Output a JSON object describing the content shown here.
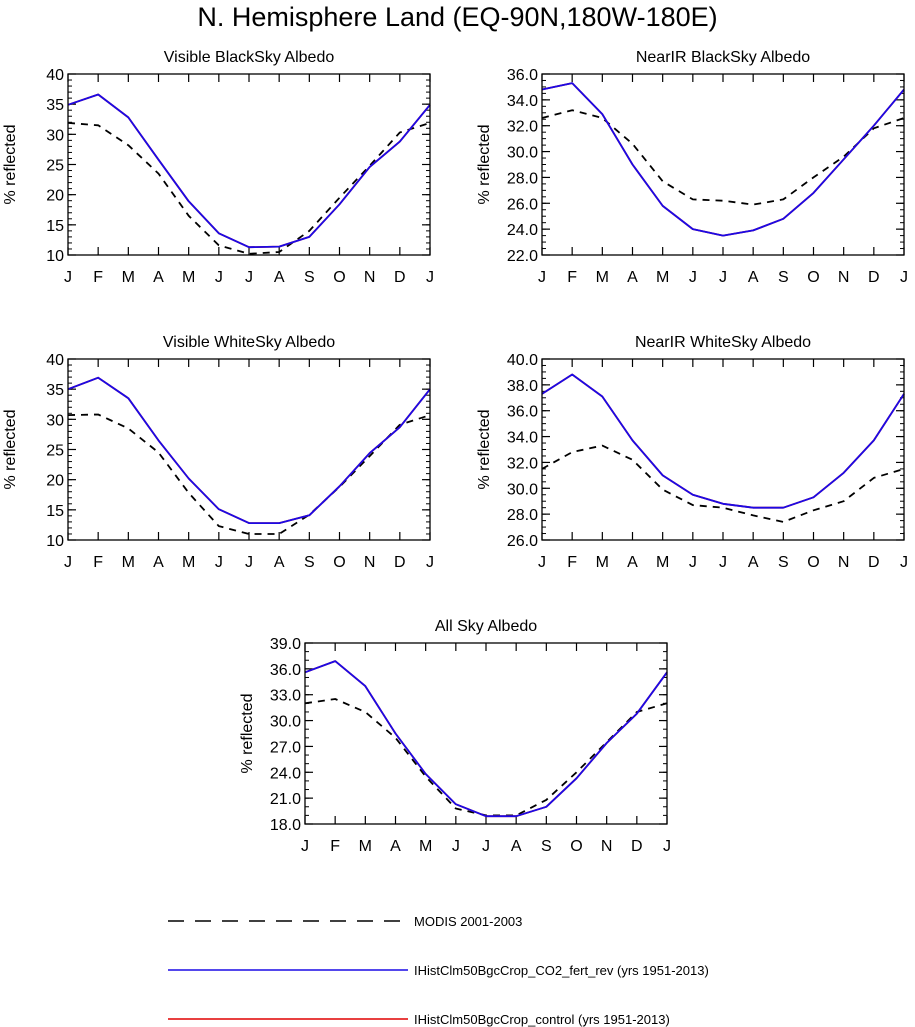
{
  "title": "N. Hemisphere Land (EQ-90N,180W-180E)",
  "months": [
    "J",
    "F",
    "M",
    "A",
    "M",
    "J",
    "J",
    "A",
    "S",
    "O",
    "N",
    "D",
    "J"
  ],
  "colors": {
    "modis": "#000000",
    "co2_fert_rev": "#1a0ae6",
    "control": "#e00000"
  },
  "legend": [
    {
      "label": "MODIS 2001-2003",
      "style": "dashed",
      "color": "#000000"
    },
    {
      "label": "IHistClm50BgcCrop_CO2_fert_rev (yrs 1951-2013)",
      "style": "solid",
      "color": "#1a0ae6"
    },
    {
      "label": "IHistClm50BgcCrop_control (yrs 1951-2013)",
      "style": "solid",
      "color": "#e00000"
    }
  ],
  "chart_data": [
    {
      "type": "line",
      "title": "Visible BlackSky Albedo",
      "ylabel": "% reflected",
      "ylim": [
        10,
        40
      ],
      "yticks": [
        "10",
        "15",
        "20",
        "25",
        "30",
        "35",
        "40"
      ],
      "yminor": 1,
      "series": [
        {
          "name": "MODIS 2001-2003",
          "values": [
            31.9,
            31.5,
            28.2,
            23.5,
            16.5,
            11.6,
            10.2,
            10.5,
            14.0,
            19.5,
            24.8,
            30.3,
            31.9
          ]
        },
        {
          "name": "IHistClm50BgcCrop_CO2_fert_rev (yrs 1951-2013)",
          "values": [
            34.9,
            36.6,
            32.8,
            25.8,
            18.9,
            13.6,
            11.3,
            11.4,
            13.0,
            18.4,
            24.6,
            28.8,
            34.9
          ]
        },
        {
          "name": "IHistClm50BgcCrop_control (yrs 1951-2013)",
          "values": [
            34.9,
            36.6,
            32.8,
            25.8,
            18.9,
            13.6,
            11.3,
            11.4,
            13.0,
            18.4,
            24.6,
            28.8,
            34.9
          ]
        }
      ]
    },
    {
      "type": "line",
      "title": "NearIR BlackSky Albedo",
      "ylabel": "% reflected",
      "ylim": [
        22,
        36
      ],
      "yticks": [
        "22.0",
        "24.0",
        "26.0",
        "28.0",
        "30.0",
        "32.0",
        "34.0",
        "36.0"
      ],
      "yminor": 0.5,
      "series": [
        {
          "name": "MODIS 2001-2003",
          "values": [
            32.6,
            33.2,
            32.6,
            30.6,
            27.7,
            26.3,
            26.2,
            25.9,
            26.3,
            28.0,
            29.6,
            31.8,
            32.6
          ]
        },
        {
          "name": "IHistClm50BgcCrop_CO2_fert_rev (yrs 1951-2013)",
          "values": [
            34.8,
            35.3,
            32.9,
            29.0,
            25.8,
            24.0,
            23.5,
            23.9,
            24.8,
            26.8,
            29.4,
            32.0,
            34.8
          ]
        },
        {
          "name": "IHistClm50BgcCrop_control (yrs 1951-2013)",
          "values": [
            34.8,
            35.3,
            32.9,
            29.0,
            25.8,
            24.0,
            23.5,
            23.9,
            24.8,
            26.8,
            29.4,
            32.0,
            34.8
          ]
        }
      ]
    },
    {
      "type": "line",
      "title": "Visible WhiteSky Albedo",
      "ylabel": "% reflected",
      "ylim": [
        10,
        40
      ],
      "yticks": [
        "10",
        "15",
        "20",
        "25",
        "30",
        "35",
        "40"
      ],
      "yminor": 1,
      "series": [
        {
          "name": "MODIS 2001-2003",
          "values": [
            30.7,
            30.8,
            28.5,
            24.5,
            17.8,
            12.3,
            11.0,
            11.0,
            14.2,
            18.8,
            23.9,
            29.1,
            30.7
          ]
        },
        {
          "name": "IHistClm50BgcCrop_CO2_fert_rev (yrs 1951-2013)",
          "values": [
            35.0,
            36.9,
            33.5,
            26.5,
            20.2,
            15.1,
            12.8,
            12.8,
            14.1,
            18.9,
            24.4,
            28.7,
            35.0
          ]
        },
        {
          "name": "IHistClm50BgcCrop_control (yrs 1951-2013)",
          "values": [
            35.0,
            36.9,
            33.5,
            26.5,
            20.2,
            15.1,
            12.8,
            12.8,
            14.1,
            18.9,
            24.4,
            28.7,
            35.0
          ]
        }
      ]
    },
    {
      "type": "line",
      "title": "NearIR WhiteSky Albedo",
      "ylabel": "% reflected",
      "ylim": [
        26,
        40
      ],
      "yticks": [
        "26.0",
        "28.0",
        "30.0",
        "32.0",
        "34.0",
        "36.0",
        "38.0",
        "40.0"
      ],
      "yminor": 0.5,
      "series": [
        {
          "name": "MODIS 2001-2003",
          "values": [
            31.5,
            32.8,
            33.3,
            32.2,
            29.9,
            28.7,
            28.5,
            27.9,
            27.4,
            28.3,
            29.0,
            30.8,
            31.5
          ]
        },
        {
          "name": "IHistClm50BgcCrop_CO2_fert_rev (yrs 1951-2013)",
          "values": [
            37.3,
            38.8,
            37.1,
            33.7,
            31.0,
            29.5,
            28.8,
            28.5,
            28.5,
            29.3,
            31.2,
            33.7,
            37.3
          ]
        },
        {
          "name": "IHistClm50BgcCrop_control (yrs 1951-2013)",
          "values": [
            37.3,
            38.8,
            37.1,
            33.7,
            31.0,
            29.5,
            28.8,
            28.5,
            28.5,
            29.3,
            31.2,
            33.7,
            37.3
          ]
        }
      ]
    },
    {
      "type": "line",
      "title": "All Sky Albedo",
      "ylabel": "% reflected",
      "ylim": [
        18,
        39
      ],
      "yticks": [
        "18.0",
        "21.0",
        "24.0",
        "27.0",
        "30.0",
        "33.0",
        "36.0",
        "39.0"
      ],
      "yminor": 1,
      "series": [
        {
          "name": "MODIS 2001-2003",
          "values": [
            32.0,
            32.5,
            31.0,
            28.0,
            23.5,
            19.8,
            19.0,
            19.0,
            20.8,
            24.0,
            27.5,
            31.0,
            32.0
          ]
        },
        {
          "name": "IHistClm50BgcCrop_CO2_fert_rev (yrs 1951-2013)",
          "values": [
            35.6,
            36.9,
            34.0,
            28.5,
            23.8,
            20.3,
            18.9,
            18.9,
            20.0,
            23.3,
            27.4,
            30.8,
            35.6
          ]
        },
        {
          "name": "IHistClm50BgcCrop_control (yrs 1951-2013)",
          "values": [
            35.6,
            36.9,
            34.0,
            28.5,
            23.8,
            20.3,
            18.9,
            18.9,
            20.0,
            23.3,
            27.4,
            30.8,
            35.6
          ]
        }
      ]
    }
  ]
}
